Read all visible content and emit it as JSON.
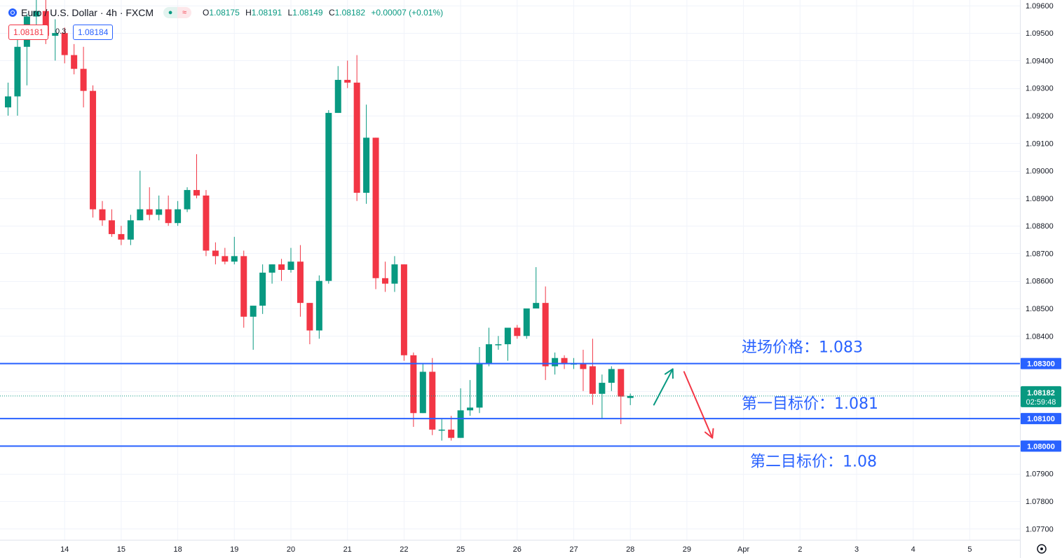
{
  "header": {
    "symbol": "Euro / U.S. Dollar · 4h · FXCM",
    "ohlc": {
      "o_label": "O",
      "o": "1.08175",
      "h_label": "H",
      "h": "1.08191",
      "l_label": "L",
      "l": "1.08149",
      "c_label": "C",
      "c": "1.08182",
      "change": "+0.00007 (+0.01%)"
    },
    "sell_price": "1.08181",
    "spread": "0.3",
    "buy_price": "1.08184"
  },
  "colors": {
    "up": "#089981",
    "down": "#f23645",
    "level_line": "#2962ff",
    "annotation_text": "#2962ff",
    "grid": "#f0f3fa",
    "axis_text": "#131722",
    "green_arrow": "#089981",
    "red_arrow": "#f23645"
  },
  "chart_data": {
    "type": "candlestick",
    "ylim": [
      1.0766,
      1.0962
    ],
    "y_ticks": [
      "1.09600",
      "1.09500",
      "1.09400",
      "1.09300",
      "1.09200",
      "1.09100",
      "1.09000",
      "1.08900",
      "1.08800",
      "1.08700",
      "1.08600",
      "1.08500",
      "1.08400",
      "1.08300",
      "1.08200",
      "1.08100",
      "1.08000",
      "1.07900",
      "1.07800",
      "1.07700"
    ],
    "x_ticks": [
      {
        "label": "14",
        "at": 6
      },
      {
        "label": "15",
        "at": 12
      },
      {
        "label": "18",
        "at": 18
      },
      {
        "label": "19",
        "at": 24
      },
      {
        "label": "20",
        "at": 30
      },
      {
        "label": "21",
        "at": 36
      },
      {
        "label": "22",
        "at": 42
      },
      {
        "label": "25",
        "at": 48
      },
      {
        "label": "26",
        "at": 54
      },
      {
        "label": "27",
        "at": 60
      },
      {
        "label": "28",
        "at": 66
      },
      {
        "label": "29",
        "at": 72
      },
      {
        "label": "Apr",
        "at": 78
      },
      {
        "label": "2",
        "at": 84
      },
      {
        "label": "3",
        "at": 90
      },
      {
        "label": "4",
        "at": 96
      },
      {
        "label": "5",
        "at": 102
      }
    ],
    "candles": [
      {
        "o": 1.0923,
        "h": 1.0932,
        "l": 1.092,
        "c": 1.0927
      },
      {
        "o": 1.0927,
        "h": 1.0953,
        "l": 1.092,
        "c": 1.0945
      },
      {
        "o": 1.0945,
        "h": 1.0957,
        "l": 1.0931,
        "c": 1.0956
      },
      {
        "o": 1.0956,
        "h": 1.0963,
        "l": 1.0948,
        "c": 1.0958
      },
      {
        "o": 1.0958,
        "h": 1.0963,
        "l": 1.0946,
        "c": 1.0949
      },
      {
        "o": 1.0949,
        "h": 1.0955,
        "l": 1.094,
        "c": 1.095
      },
      {
        "o": 1.095,
        "h": 1.0952,
        "l": 1.0939,
        "c": 1.0942
      },
      {
        "o": 1.0942,
        "h": 1.0946,
        "l": 1.0935,
        "c": 1.0937
      },
      {
        "o": 1.0937,
        "h": 1.0945,
        "l": 1.0923,
        "c": 1.0929
      },
      {
        "o": 1.0929,
        "h": 1.0931,
        "l": 1.0883,
        "c": 1.0886
      },
      {
        "o": 1.0886,
        "h": 1.0889,
        "l": 1.088,
        "c": 1.0882
      },
      {
        "o": 1.0882,
        "h": 1.0886,
        "l": 1.0876,
        "c": 1.0877
      },
      {
        "o": 1.0877,
        "h": 1.088,
        "l": 1.0873,
        "c": 1.0875
      },
      {
        "o": 1.0875,
        "h": 1.0884,
        "l": 1.0873,
        "c": 1.0882
      },
      {
        "o": 1.0882,
        "h": 1.09,
        "l": 1.0882,
        "c": 1.0886
      },
      {
        "o": 1.0886,
        "h": 1.0894,
        "l": 1.0882,
        "c": 1.0884
      },
      {
        "o": 1.0884,
        "h": 1.0891,
        "l": 1.0882,
        "c": 1.0886
      },
      {
        "o": 1.0886,
        "h": 1.0891,
        "l": 1.088,
        "c": 1.0881
      },
      {
        "o": 1.0881,
        "h": 1.0889,
        "l": 1.088,
        "c": 1.0886
      },
      {
        "o": 1.0886,
        "h": 1.0894,
        "l": 1.0885,
        "c": 1.0893
      },
      {
        "o": 1.0893,
        "h": 1.0906,
        "l": 1.089,
        "c": 1.0891
      },
      {
        "o": 1.0891,
        "h": 1.0893,
        "l": 1.0869,
        "c": 1.0871
      },
      {
        "o": 1.0871,
        "h": 1.0874,
        "l": 1.0866,
        "c": 1.0869
      },
      {
        "o": 1.0869,
        "h": 1.0872,
        "l": 1.0866,
        "c": 1.0867
      },
      {
        "o": 1.0867,
        "h": 1.0876,
        "l": 1.0866,
        "c": 1.0869
      },
      {
        "o": 1.0869,
        "h": 1.0871,
        "l": 1.0843,
        "c": 1.0847
      },
      {
        "o": 1.0847,
        "h": 1.0851,
        "l": 1.0835,
        "c": 1.0851
      },
      {
        "o": 1.0851,
        "h": 1.0866,
        "l": 1.0848,
        "c": 1.0863
      },
      {
        "o": 1.0863,
        "h": 1.0866,
        "l": 1.0859,
        "c": 1.0866
      },
      {
        "o": 1.0866,
        "h": 1.0868,
        "l": 1.086,
        "c": 1.0864
      },
      {
        "o": 1.0864,
        "h": 1.0872,
        "l": 1.0863,
        "c": 1.0867
      },
      {
        "o": 1.0867,
        "h": 1.0873,
        "l": 1.0847,
        "c": 1.0852
      },
      {
        "o": 1.0852,
        "h": 1.0852,
        "l": 1.0837,
        "c": 1.0842
      },
      {
        "o": 1.0842,
        "h": 1.0862,
        "l": 1.0839,
        "c": 1.086
      },
      {
        "o": 1.086,
        "h": 1.0922,
        "l": 1.0859,
        "c": 1.0921
      },
      {
        "o": 1.0921,
        "h": 1.0938,
        "l": 1.0921,
        "c": 1.0933
      },
      {
        "o": 1.0933,
        "h": 1.094,
        "l": 1.093,
        "c": 1.0932
      },
      {
        "o": 1.0932,
        "h": 1.0942,
        "l": 1.0889,
        "c": 1.0892
      },
      {
        "o": 1.0892,
        "h": 1.0924,
        "l": 1.0888,
        "c": 1.0912
      },
      {
        "o": 1.0912,
        "h": 1.0912,
        "l": 1.0857,
        "c": 1.0861
      },
      {
        "o": 1.0861,
        "h": 1.0867,
        "l": 1.0856,
        "c": 1.0859
      },
      {
        "o": 1.0859,
        "h": 1.0869,
        "l": 1.0856,
        "c": 1.0866
      },
      {
        "o": 1.0866,
        "h": 1.0866,
        "l": 1.0831,
        "c": 1.0833
      },
      {
        "o": 1.0833,
        "h": 1.0834,
        "l": 1.0807,
        "c": 1.0812
      },
      {
        "o": 1.0812,
        "h": 1.083,
        "l": 1.0812,
        "c": 1.0827
      },
      {
        "o": 1.0827,
        "h": 1.0832,
        "l": 1.0804,
        "c": 1.0806
      },
      {
        "o": 1.0806,
        "h": 1.081,
        "l": 1.0802,
        "c": 1.0806
      },
      {
        "o": 1.0806,
        "h": 1.0811,
        "l": 1.0802,
        "c": 1.0803
      },
      {
        "o": 1.0803,
        "h": 1.0821,
        "l": 1.0803,
        "c": 1.0813
      },
      {
        "o": 1.0813,
        "h": 1.0824,
        "l": 1.0811,
        "c": 1.0814
      },
      {
        "o": 1.0814,
        "h": 1.0836,
        "l": 1.0812,
        "c": 1.083
      },
      {
        "o": 1.083,
        "h": 1.0843,
        "l": 1.0829,
        "c": 1.0837
      },
      {
        "o": 1.0837,
        "h": 1.084,
        "l": 1.0835,
        "c": 1.0837
      },
      {
        "o": 1.0837,
        "h": 1.0843,
        "l": 1.0831,
        "c": 1.0843
      },
      {
        "o": 1.0843,
        "h": 1.0844,
        "l": 1.0839,
        "c": 1.084
      },
      {
        "o": 1.084,
        "h": 1.085,
        "l": 1.0839,
        "c": 1.085
      },
      {
        "o": 1.085,
        "h": 1.0865,
        "l": 1.085,
        "c": 1.0852
      },
      {
        "o": 1.0852,
        "h": 1.0858,
        "l": 1.0824,
        "c": 1.0829
      },
      {
        "o": 1.0829,
        "h": 1.0834,
        "l": 1.0826,
        "c": 1.0832
      },
      {
        "o": 1.0832,
        "h": 1.0833,
        "l": 1.0828,
        "c": 1.083
      },
      {
        "o": 1.083,
        "h": 1.0832,
        "l": 1.0828,
        "c": 1.083
      },
      {
        "o": 1.083,
        "h": 1.0835,
        "l": 1.082,
        "c": 1.0828
      },
      {
        "o": 1.0829,
        "h": 1.0839,
        "l": 1.0815,
        "c": 1.0819
      },
      {
        "o": 1.0819,
        "h": 1.0826,
        "l": 1.081,
        "c": 1.0823
      },
      {
        "o": 1.0823,
        "h": 1.0829,
        "l": 1.082,
        "c": 1.0828
      },
      {
        "o": 1.0828,
        "h": 1.0828,
        "l": 1.0808,
        "c": 1.0818
      },
      {
        "o": 1.08175,
        "h": 1.08191,
        "l": 1.08149,
        "c": 1.08182
      }
    ],
    "levels": [
      {
        "price": 1.083,
        "tag": "1.08300",
        "text": "进场价格：1.083"
      },
      {
        "price": 1.081,
        "tag": "1.08100",
        "text": "第一目标价：1.081"
      },
      {
        "price": 1.08,
        "tag": "1.08000",
        "text": "第二目标价：1.08"
      }
    ],
    "current_price": {
      "price": 1.08182,
      "label": "1.08182",
      "countdown": "02:59:48"
    },
    "annotations": {
      "green_arrow": {
        "from": [
          68.5,
          1.0815
        ],
        "to": [
          70.5,
          1.0828
        ]
      },
      "red_arrow": {
        "from": [
          71.7,
          1.0827
        ],
        "to": [
          74.7,
          1.0803
        ]
      }
    }
  }
}
